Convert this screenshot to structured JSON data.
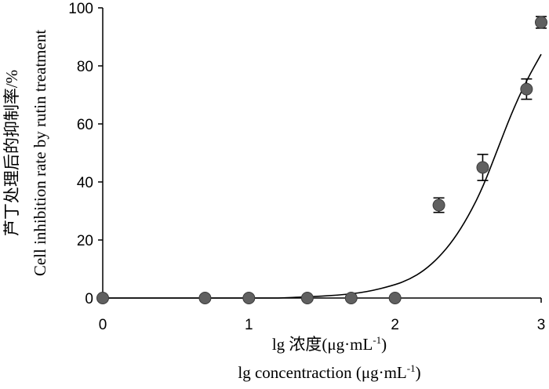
{
  "chart_data": {
    "type": "scatter",
    "xlabel_cn": "lg 浓度(μg·mL",
    "xlabel_en": "lg concentraction (μg·mL",
    "unit_sup": "-1",
    "unit_close": ")",
    "ylabel_cn": "芦丁处理后的抑制率/%",
    "ylabel_en": "Cell inhibition rate by rutin treatment",
    "xlim": [
      0,
      3
    ],
    "ylim": [
      0,
      100
    ],
    "x_ticks": [
      0,
      1,
      2,
      3
    ],
    "y_ticks": [
      0,
      20,
      40,
      60,
      80,
      100
    ],
    "points": [
      {
        "x": 0,
        "y": 0,
        "err": 0
      },
      {
        "x": 0.7,
        "y": 0,
        "err": 0
      },
      {
        "x": 1,
        "y": 0,
        "err": 0
      },
      {
        "x": 1.4,
        "y": 0,
        "err": 0
      },
      {
        "x": 1.7,
        "y": 0,
        "err": 0
      },
      {
        "x": 2,
        "y": 0,
        "err": 0
      },
      {
        "x": 2.3,
        "y": 32,
        "err": 2.5
      },
      {
        "x": 2.6,
        "y": 45,
        "err": 4.5
      },
      {
        "x": 2.9,
        "y": 72,
        "err": 3.5
      },
      {
        "x": 3,
        "y": 95,
        "err": 2
      }
    ],
    "fit_curve": [
      {
        "x": 1.2,
        "y": 0
      },
      {
        "x": 1.4,
        "y": 0.4
      },
      {
        "x": 1.6,
        "y": 0.9
      },
      {
        "x": 1.8,
        "y": 2
      },
      {
        "x": 2.0,
        "y": 4.5
      },
      {
        "x": 2.1,
        "y": 6.5
      },
      {
        "x": 2.2,
        "y": 9.5
      },
      {
        "x": 2.3,
        "y": 14
      },
      {
        "x": 2.4,
        "y": 20
      },
      {
        "x": 2.5,
        "y": 28
      },
      {
        "x": 2.6,
        "y": 38
      },
      {
        "x": 2.7,
        "y": 51
      },
      {
        "x": 2.8,
        "y": 64
      },
      {
        "x": 2.9,
        "y": 75
      },
      {
        "x": 3.0,
        "y": 84
      }
    ],
    "marker_color": "#606060",
    "line_color": "#000000"
  }
}
